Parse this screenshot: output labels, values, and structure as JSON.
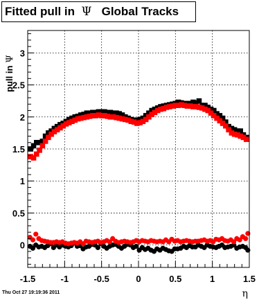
{
  "chart_data": {
    "type": "scatter",
    "title": {
      "prefix": "Fitted pull in",
      "symbol": "Ψ",
      "suffix": "Global Tracks"
    },
    "ylabel": {
      "prefix": "pull in",
      "symbol": "Ψ"
    },
    "xlabel": "η",
    "xlim": [
      -1.5,
      1.5
    ],
    "ylim": [
      -0.35,
      3.35
    ],
    "grid": true,
    "x_ticks": [
      {
        "value": -1.5,
        "label": "-1.5"
      },
      {
        "value": -1.0,
        "label": "-1"
      },
      {
        "value": -0.5,
        "label": "-0.5"
      },
      {
        "value": 0.0,
        "label": "0"
      },
      {
        "value": 0.5,
        "label": "0.5"
      },
      {
        "value": 1.0,
        "label": "1"
      },
      {
        "value": 1.5,
        "label": "1.5"
      }
    ],
    "y_ticks": [
      {
        "value": 0.0,
        "label": "0"
      },
      {
        "value": 0.5,
        "label": "0.5"
      },
      {
        "value": 1.0,
        "label": "1"
      },
      {
        "value": 1.5,
        "label": "1.5"
      },
      {
        "value": 2.0,
        "label": "2"
      },
      {
        "value": 2.5,
        "label": "2.5"
      },
      {
        "value": 3.0,
        "label": "3"
      }
    ],
    "series": [
      {
        "color": "#000000",
        "marker": "square",
        "x": [
          -1.46,
          -1.42,
          -1.38,
          -1.34,
          -1.3,
          -1.26,
          -1.22,
          -1.18,
          -1.14,
          -1.1,
          -1.06,
          -1.02,
          -0.98,
          -0.94,
          -0.9,
          -0.86,
          -0.82,
          -0.78,
          -0.74,
          -0.7,
          -0.66,
          -0.62,
          -0.58,
          -0.54,
          -0.5,
          -0.46,
          -0.42,
          -0.38,
          -0.34,
          -0.3,
          -0.26,
          -0.22,
          -0.18,
          -0.14,
          -0.1,
          -0.06,
          -0.02,
          0.02,
          0.06,
          0.1,
          0.14,
          0.18,
          0.22,
          0.26,
          0.3,
          0.34,
          0.38,
          0.42,
          0.46,
          0.5,
          0.54,
          0.58,
          0.62,
          0.66,
          0.7,
          0.74,
          0.78,
          0.82,
          0.86,
          0.9,
          0.94,
          0.98,
          1.02,
          1.06,
          1.1,
          1.14,
          1.18,
          1.22,
          1.26,
          1.3,
          1.34,
          1.38,
          1.42,
          1.46
        ],
        "y": [
          1.5,
          1.55,
          1.6,
          1.6,
          1.62,
          1.7,
          1.75,
          1.78,
          1.82,
          1.85,
          1.88,
          1.9,
          1.93,
          1.96,
          1.98,
          2.0,
          2.01,
          2.03,
          2.04,
          2.06,
          2.06,
          2.07,
          2.07,
          2.08,
          2.08,
          2.08,
          2.07,
          2.07,
          2.06,
          2.06,
          2.05,
          2.03,
          2.0,
          1.98,
          1.96,
          1.95,
          1.95,
          1.96,
          1.98,
          2.02,
          2.06,
          2.1,
          2.12,
          2.14,
          2.16,
          2.17,
          2.18,
          2.19,
          2.2,
          2.21,
          2.23,
          2.22,
          2.21,
          2.21,
          2.21,
          2.23,
          2.22,
          2.25,
          2.18,
          2.18,
          2.15,
          2.12,
          2.1,
          2.05,
          2.02,
          1.98,
          1.92,
          1.85,
          1.82,
          1.8,
          1.78,
          1.78,
          1.72,
          1.68
        ]
      },
      {
        "color": "#ff0000",
        "marker": "square",
        "x": [
          -1.46,
          -1.42,
          -1.38,
          -1.34,
          -1.3,
          -1.26,
          -1.22,
          -1.18,
          -1.14,
          -1.1,
          -1.06,
          -1.02,
          -0.98,
          -0.94,
          -0.9,
          -0.86,
          -0.82,
          -0.78,
          -0.74,
          -0.7,
          -0.66,
          -0.62,
          -0.58,
          -0.54,
          -0.5,
          -0.46,
          -0.42,
          -0.38,
          -0.34,
          -0.3,
          -0.26,
          -0.22,
          -0.18,
          -0.14,
          -0.1,
          -0.06,
          -0.02,
          0.02,
          0.06,
          0.1,
          0.14,
          0.18,
          0.22,
          0.26,
          0.3,
          0.34,
          0.38,
          0.42,
          0.46,
          0.5,
          0.54,
          0.58,
          0.62,
          0.66,
          0.7,
          0.74,
          0.78,
          0.82,
          0.86,
          0.9,
          0.94,
          0.98,
          1.02,
          1.06,
          1.1,
          1.14,
          1.18,
          1.22,
          1.26,
          1.3,
          1.34,
          1.38,
          1.42,
          1.46
        ],
        "y": [
          1.38,
          1.36,
          1.42,
          1.48,
          1.55,
          1.62,
          1.68,
          1.73,
          1.77,
          1.8,
          1.83,
          1.86,
          1.89,
          1.91,
          1.93,
          1.95,
          1.97,
          1.98,
          1.99,
          2.0,
          2.01,
          2.02,
          2.02,
          2.03,
          2.02,
          2.02,
          2.01,
          2.0,
          2.0,
          1.99,
          1.98,
          1.97,
          1.96,
          1.95,
          1.93,
          1.92,
          1.9,
          1.91,
          1.93,
          1.96,
          2.0,
          2.04,
          2.07,
          2.1,
          2.12,
          2.13,
          2.15,
          2.16,
          2.17,
          2.18,
          2.18,
          2.19,
          2.18,
          2.17,
          2.17,
          2.16,
          2.16,
          2.15,
          2.14,
          2.12,
          2.1,
          2.06,
          2.02,
          1.98,
          1.94,
          1.9,
          1.86,
          1.8,
          1.75,
          1.73,
          1.72,
          1.7,
          1.68,
          1.65
        ]
      },
      {
        "color": "#000000",
        "marker": "circle",
        "x": [
          -1.47,
          -1.43,
          -1.39,
          -1.35,
          -1.31,
          -1.27,
          -1.23,
          -1.19,
          -1.15,
          -1.11,
          -1.07,
          -1.03,
          -0.99,
          -0.95,
          -0.91,
          -0.87,
          -0.83,
          -0.79,
          -0.75,
          -0.71,
          -0.67,
          -0.63,
          -0.59,
          -0.55,
          -0.51,
          -0.47,
          -0.43,
          -0.39,
          -0.35,
          -0.31,
          -0.27,
          -0.23,
          -0.19,
          -0.15,
          -0.11,
          -0.07,
          -0.03,
          0.01,
          0.05,
          0.09,
          0.13,
          0.17,
          0.21,
          0.25,
          0.29,
          0.33,
          0.37,
          0.41,
          0.45,
          0.49,
          0.53,
          0.57,
          0.61,
          0.65,
          0.69,
          0.73,
          0.77,
          0.81,
          0.85,
          0.89,
          0.93,
          0.97,
          1.01,
          1.05,
          1.09,
          1.13,
          1.17,
          1.21,
          1.25,
          1.29,
          1.33,
          1.37,
          1.41,
          1.45,
          1.48
        ],
        "y": [
          -0.02,
          -0.05,
          0.0,
          -0.03,
          -0.02,
          -0.04,
          -0.01,
          0.02,
          -0.04,
          0.0,
          -0.03,
          0.0,
          -0.02,
          -0.03,
          -0.01,
          0.03,
          -0.02,
          -0.01,
          -0.06,
          -0.03,
          -0.02,
          0.01,
          0.0,
          -0.04,
          0.02,
          -0.02,
          -0.05,
          -0.02,
          0.0,
          0.01,
          -0.02,
          -0.05,
          -0.02,
          0.01,
          0.0,
          -0.04,
          -0.02,
          -0.08,
          -0.04,
          -0.07,
          -0.05,
          -0.08,
          -0.1,
          -0.06,
          -0.08,
          -0.05,
          -0.07,
          -0.09,
          -0.1,
          -0.06,
          -0.06,
          -0.05,
          -0.02,
          -0.04,
          -0.01,
          -0.03,
          -0.03,
          0.0,
          -0.02,
          -0.04,
          0.0,
          -0.02,
          -0.03,
          -0.04,
          -0.02,
          0.0,
          -0.04,
          -0.03,
          -0.02,
          0.0,
          -0.05,
          -0.03,
          -0.02,
          -0.04,
          -0.08
        ]
      },
      {
        "color": "#ff0000",
        "marker": "circle",
        "x": [
          -1.47,
          -1.43,
          -1.39,
          -1.35,
          -1.31,
          -1.27,
          -1.23,
          -1.19,
          -1.15,
          -1.11,
          -1.07,
          -1.03,
          -0.99,
          -0.95,
          -0.91,
          -0.87,
          -0.83,
          -0.79,
          -0.75,
          -0.71,
          -0.67,
          -0.63,
          -0.59,
          -0.55,
          -0.51,
          -0.47,
          -0.43,
          -0.39,
          -0.35,
          -0.31,
          -0.27,
          -0.23,
          -0.19,
          -0.15,
          -0.11,
          -0.07,
          -0.03,
          0.01,
          0.05,
          0.09,
          0.13,
          0.17,
          0.21,
          0.25,
          0.29,
          0.33,
          0.37,
          0.41,
          0.45,
          0.49,
          0.53,
          0.57,
          0.61,
          0.65,
          0.69,
          0.73,
          0.77,
          0.81,
          0.85,
          0.89,
          0.93,
          0.97,
          1.01,
          1.05,
          1.09,
          1.13,
          1.17,
          1.21,
          1.25,
          1.29,
          1.33,
          1.37,
          1.41,
          1.45,
          1.48
        ],
        "y": [
          0.12,
          0.08,
          0.17,
          0.1,
          0.07,
          0.06,
          0.05,
          0.04,
          0.04,
          0.05,
          0.04,
          0.05,
          0.03,
          0.02,
          0.03,
          0.04,
          0.03,
          0.05,
          0.02,
          0.06,
          0.05,
          0.04,
          0.05,
          0.06,
          0.04,
          0.05,
          0.07,
          0.05,
          0.1,
          0.06,
          0.04,
          0.05,
          0.06,
          0.05,
          0.04,
          0.05,
          0.07,
          0.05,
          0.07,
          0.06,
          0.05,
          0.07,
          0.06,
          0.05,
          0.06,
          0.05,
          0.08,
          0.05,
          0.09,
          0.06,
          0.07,
          0.05,
          0.06,
          0.07,
          0.06,
          0.05,
          0.06,
          0.06,
          0.07,
          0.08,
          0.06,
          0.07,
          0.05,
          0.09,
          0.08,
          0.1,
          0.07,
          0.06,
          0.08,
          0.05,
          0.1,
          0.08,
          0.13,
          0.1,
          0.18
        ]
      }
    ]
  },
  "footer": {
    "timestamp": "Thu Oct 27 19:19:36 2011"
  }
}
